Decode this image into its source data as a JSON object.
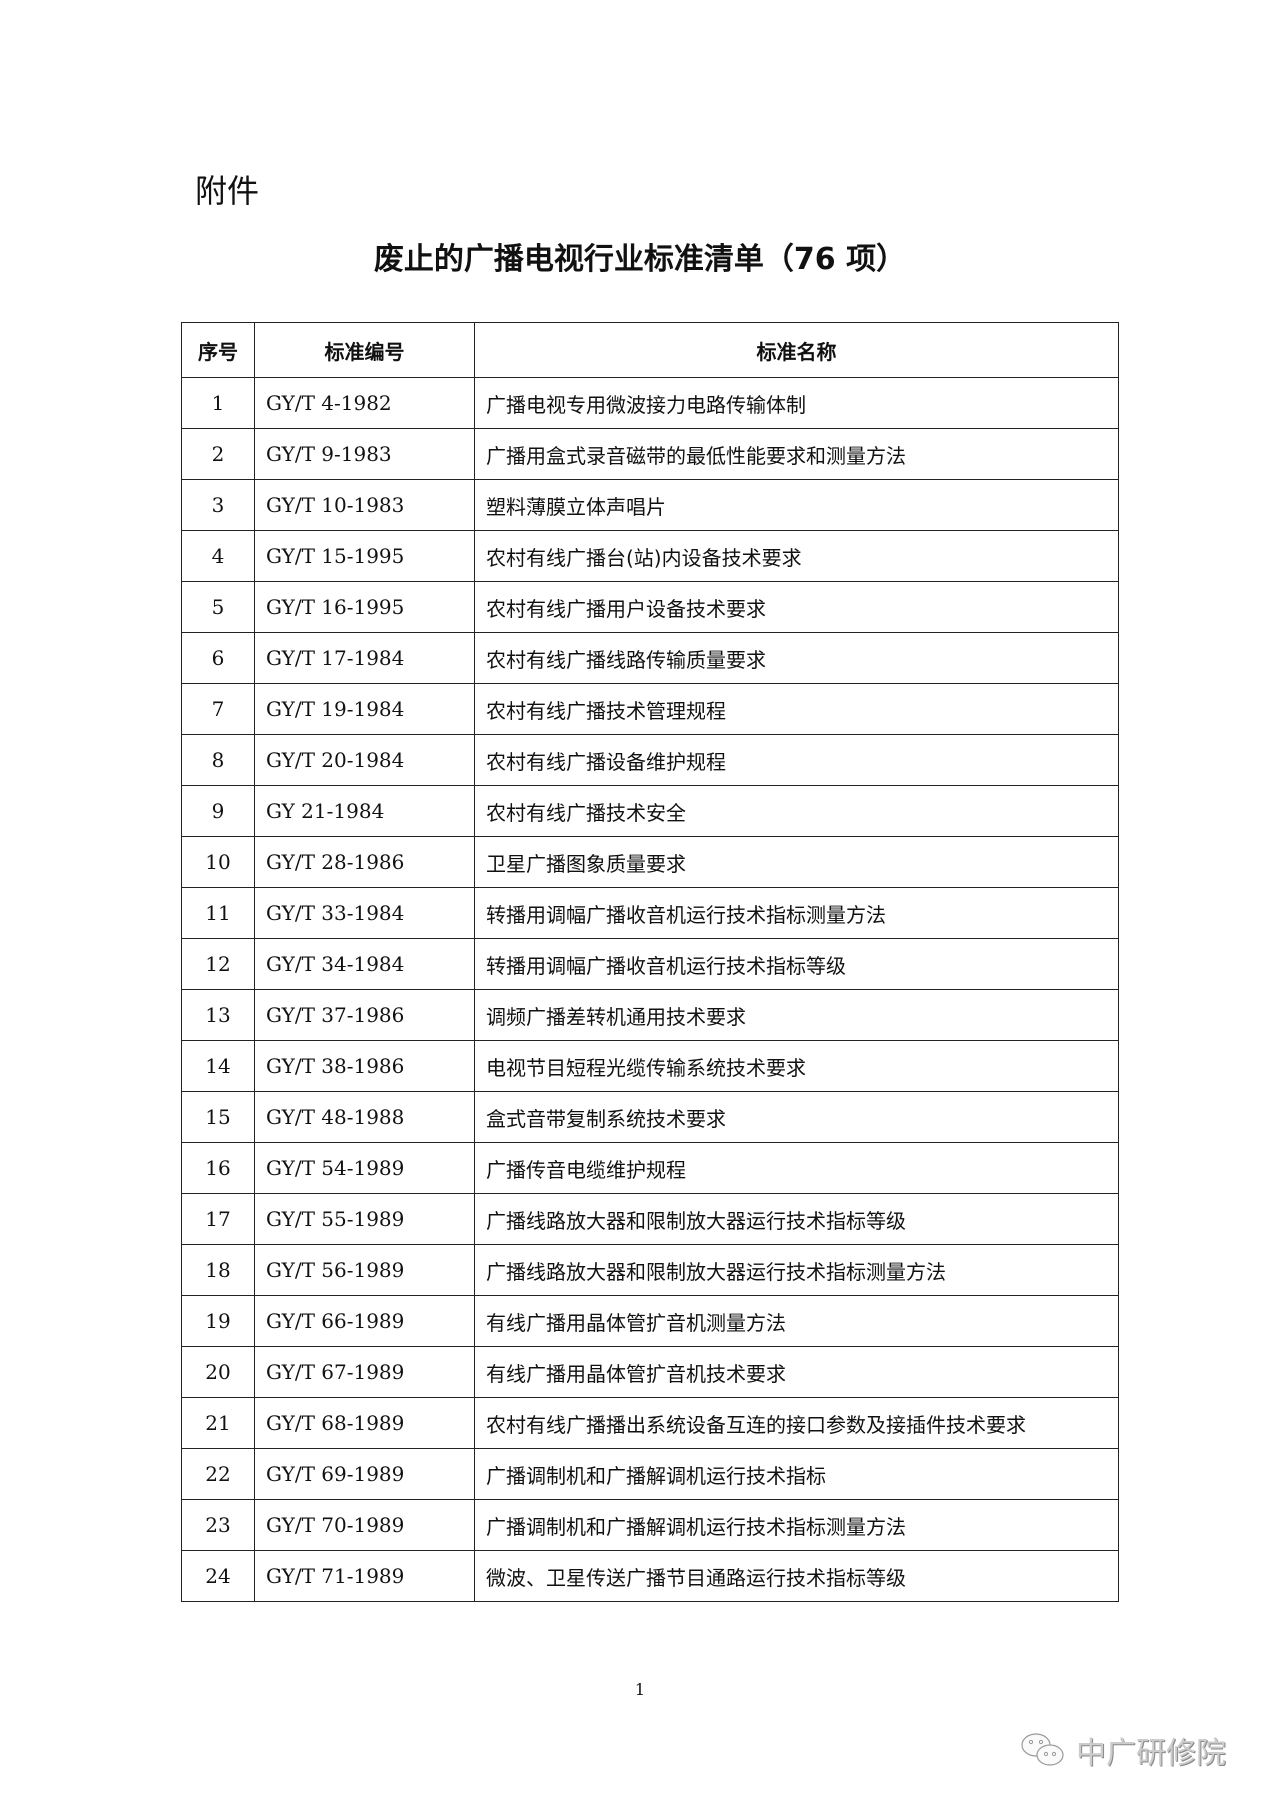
{
  "attachment_label": "附件",
  "title": "废止的广播电视行业标准清单（76 项）",
  "table": {
    "headers": [
      "序号",
      "标准编号",
      "标准名称"
    ],
    "rows": [
      [
        "1",
        "GY/T 4-1982",
        "广播电视专用微波接力电路传输体制"
      ],
      [
        "2",
        "GY/T 9-1983",
        "广播用盒式录音磁带的最低性能要求和测量方法"
      ],
      [
        "3",
        "GY/T 10-1983",
        "塑料薄膜立体声唱片"
      ],
      [
        "4",
        "GY/T 15-1995",
        "农村有线广播台(站)内设备技术要求"
      ],
      [
        "5",
        "GY/T 16-1995",
        "农村有线广播用户设备技术要求"
      ],
      [
        "6",
        "GY/T 17-1984",
        "农村有线广播线路传输质量要求"
      ],
      [
        "7",
        "GY/T 19-1984",
        "农村有线广播技术管理规程"
      ],
      [
        "8",
        "GY/T 20-1984",
        "农村有线广播设备维护规程"
      ],
      [
        "9",
        "GY 21-1984",
        "农村有线广播技术安全"
      ],
      [
        "10",
        "GY/T 28-1986",
        "卫星广播图象质量要求"
      ],
      [
        "11",
        "GY/T 33-1984",
        "转播用调幅广播收音机运行技术指标测量方法"
      ],
      [
        "12",
        "GY/T 34-1984",
        "转播用调幅广播收音机运行技术指标等级"
      ],
      [
        "13",
        "GY/T 37-1986",
        "调频广播差转机通用技术要求"
      ],
      [
        "14",
        "GY/T 38-1986",
        "电视节目短程光缆传输系统技术要求"
      ],
      [
        "15",
        "GY/T 48-1988",
        "盒式音带复制系统技术要求"
      ],
      [
        "16",
        "GY/T 54-1989",
        "广播传音电缆维护规程"
      ],
      [
        "17",
        "GY/T 55-1989",
        "广播线路放大器和限制放大器运行技术指标等级"
      ],
      [
        "18",
        "GY/T 56-1989",
        "广播线路放大器和限制放大器运行技术指标测量方法"
      ],
      [
        "19",
        "GY/T 66-1989",
        "有线广播用晶体管扩音机测量方法"
      ],
      [
        "20",
        "GY/T 67-1989",
        "有线广播用晶体管扩音机技术要求"
      ],
      [
        "21",
        "GY/T 68-1989",
        "农村有线广播播出系统设备互连的接口参数及接插件技术要求"
      ],
      [
        "22",
        "GY/T 69-1989",
        "广播调制机和广播解调机运行技术指标"
      ],
      [
        "23",
        "GY/T 70-1989",
        "广播调制机和广播解调机运行技术指标测量方法"
      ],
      [
        "24",
        "GY/T 71-1989",
        "微波、卫星传送广播节目通路运行技术指标等级"
      ]
    ]
  },
  "page_number": "1",
  "watermark": {
    "icon": "wechat-icon",
    "text": "中广研修院"
  }
}
